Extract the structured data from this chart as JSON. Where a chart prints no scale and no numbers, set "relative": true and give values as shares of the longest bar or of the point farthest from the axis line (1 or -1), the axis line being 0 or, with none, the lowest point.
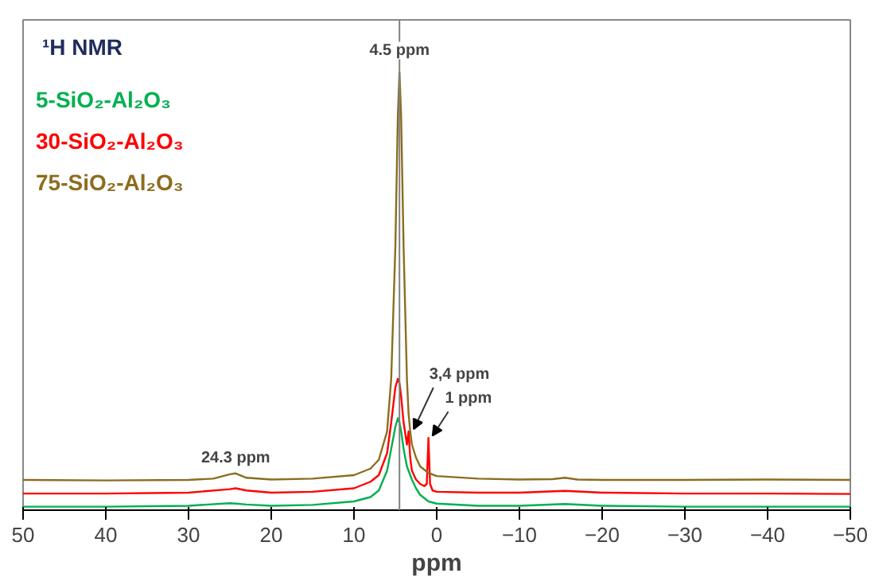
{
  "chart_data": {
    "type": "line",
    "title": "¹H NMR",
    "xlabel": "ppm",
    "relative": true,
    "legend": "top left",
    "grid": false,
    "marker": "none",
    "line_style": "solid",
    "xlim": [
      50,
      -50
    ],
    "xticks": [
      50,
      40,
      30,
      20,
      10,
      0,
      {
        "value": -10,
        "label": "−10"
      },
      {
        "value": -20,
        "label": "−20"
      },
      {
        "value": -30,
        "label": "−30"
      },
      {
        "value": -40,
        "label": "−40"
      },
      {
        "value": -50,
        "label": "−50"
      }
    ],
    "ref_lines": [
      {
        "axis": "x",
        "value": 4.5,
        "label": "4.5 ppm",
        "color": "#808080"
      }
    ],
    "annotations": [
      {
        "text": "3,4 ppm",
        "x": 3.4,
        "y": 0.18
      },
      {
        "text": "1 ppm",
        "x": 1,
        "y": 0.165
      },
      {
        "text": "24.3 ppm",
        "x": 24.3,
        "y": 0.084
      }
    ],
    "series": [
      {
        "name": "5-SiO₂-Al₂O₃",
        "color": "#00b050",
        "x": [
          50,
          40,
          30,
          25,
          24.3,
          23,
          20,
          15,
          10,
          8,
          7,
          6,
          5.5,
          5,
          4.7,
          4.5,
          4.3,
          4,
          3.6,
          3,
          2.5,
          2,
          1,
          0,
          -5,
          -10,
          -15.5,
          -20,
          -30,
          -40,
          -50
        ],
        "values": [
          0.008,
          0.008,
          0.01,
          0.016,
          0.015,
          0.013,
          0.01,
          0.012,
          0.02,
          0.03,
          0.045,
          0.09,
          0.14,
          0.19,
          0.21,
          0.2,
          0.18,
          0.14,
          0.1,
          0.07,
          0.05,
          0.035,
          0.02,
          0.015,
          0.01,
          0.01,
          0.014,
          0.01,
          0.008,
          0.008,
          0.008
        ]
      },
      {
        "name": "30-SiO₂-Al₂O₃",
        "color": "#ff0000",
        "x": [
          50,
          40,
          30,
          25,
          24.3,
          23,
          20,
          15,
          10,
          8,
          7,
          6,
          5.5,
          5,
          4.7,
          4.5,
          4.3,
          4,
          3.6,
          3.4,
          3.2,
          3,
          2.5,
          2,
          1.5,
          1.2,
          1,
          0.8,
          0.5,
          0,
          -5,
          -10,
          -15.5,
          -20,
          -30,
          -40,
          -50
        ],
        "values": [
          0.038,
          0.038,
          0.04,
          0.048,
          0.05,
          0.045,
          0.04,
          0.042,
          0.05,
          0.065,
          0.08,
          0.13,
          0.2,
          0.28,
          0.3,
          0.29,
          0.26,
          0.2,
          0.15,
          0.18,
          0.12,
          0.09,
          0.07,
          0.06,
          0.055,
          0.06,
          0.165,
          0.06,
          0.045,
          0.042,
          0.04,
          0.04,
          0.044,
          0.04,
          0.038,
          0.038,
          0.037
        ]
      },
      {
        "name": "75-SiO₂-Al₂O₃",
        "color": "#8c6d1f",
        "x": [
          50,
          40,
          30,
          27,
          25,
          24.3,
          23,
          20,
          15,
          10,
          8,
          7,
          6,
          5.5,
          5,
          4.7,
          4.5,
          4.3,
          4,
          3.6,
          3.4,
          3.2,
          3,
          2.5,
          2,
          1,
          0,
          -5,
          -10,
          -14,
          -15.5,
          -17,
          -20,
          -30,
          -40,
          -50
        ],
        "values": [
          0.069,
          0.068,
          0.069,
          0.072,
          0.082,
          0.084,
          0.074,
          0.07,
          0.072,
          0.08,
          0.095,
          0.115,
          0.18,
          0.3,
          0.6,
          0.9,
          1.0,
          0.9,
          0.6,
          0.3,
          0.22,
          0.18,
          0.15,
          0.12,
          0.1,
          0.085,
          0.078,
          0.072,
          0.07,
          0.071,
          0.074,
          0.07,
          0.069,
          0.069,
          0.07,
          0.069
        ]
      }
    ]
  }
}
